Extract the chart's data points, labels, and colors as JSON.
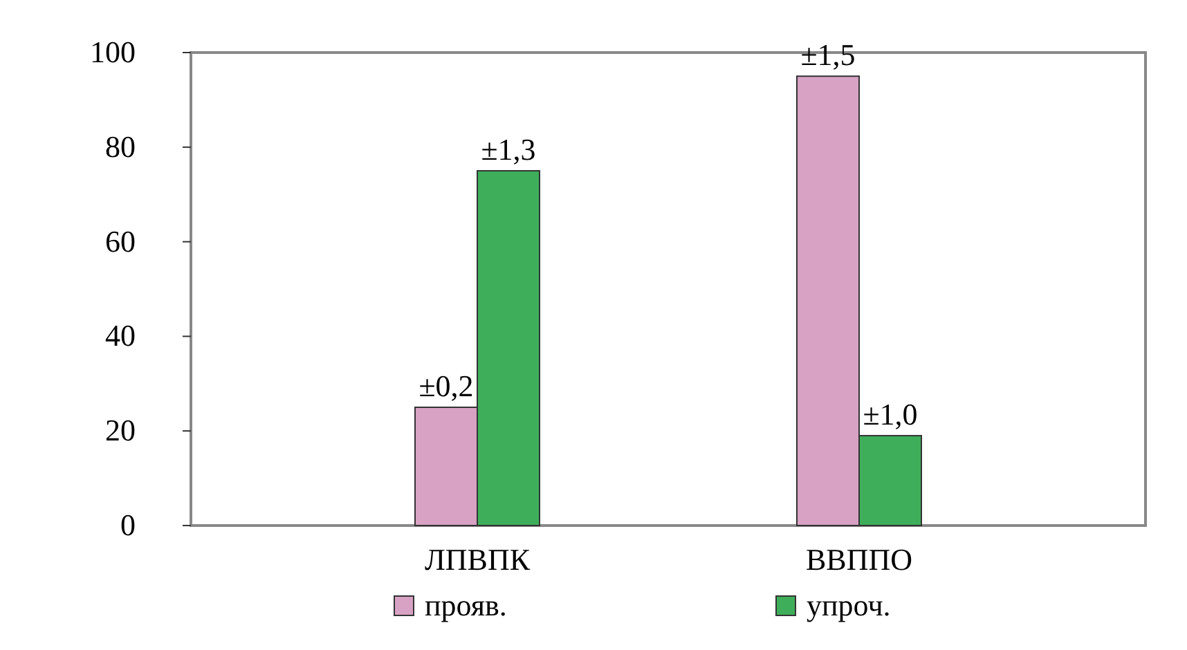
{
  "chart_data": {
    "type": "bar",
    "categories": [
      "ЛПВПК",
      "ВВППО"
    ],
    "series": [
      {
        "name": "прояв.",
        "color": "#d8a2c4",
        "values": [
          25,
          95
        ]
      },
      {
        "name": "упроч.",
        "color": "#3fae5a",
        "values": [
          75,
          19
        ]
      }
    ],
    "annotations": [
      {
        "text": "±0,2",
        "x": "ЛПВПК",
        "y": 25
      },
      {
        "text": "±1,3",
        "x": "ЛПВПК",
        "y": 75
      },
      {
        "text": "±1,5",
        "x": "ВВППО",
        "y": 95
      },
      {
        "text": "±1,0",
        "x": "ВВППО",
        "y": 19
      }
    ],
    "ylim": [
      0,
      100
    ],
    "yticks": [
      0,
      20,
      40,
      60,
      80,
      100
    ],
    "grid": false,
    "legend": "bottom"
  }
}
